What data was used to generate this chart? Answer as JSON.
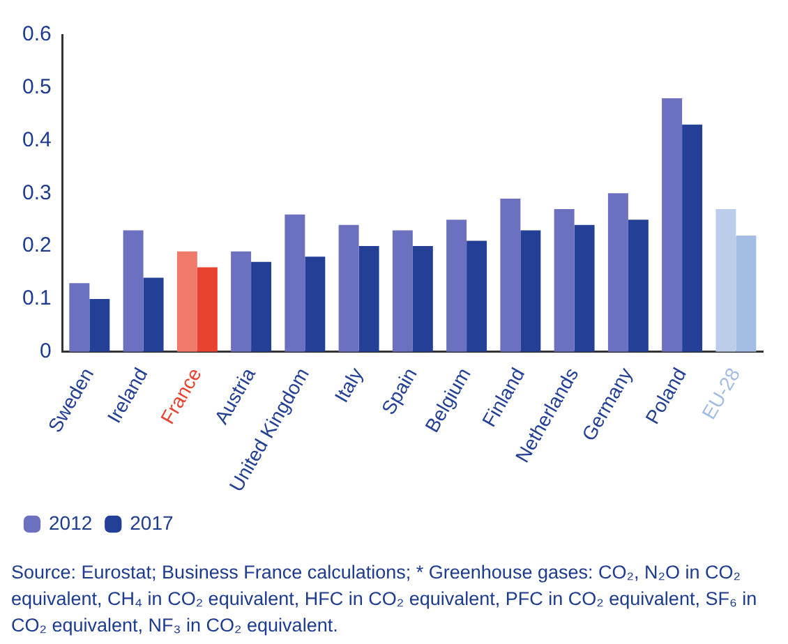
{
  "chart_data": {
    "type": "bar",
    "categories": [
      "Sweden",
      "Ireland",
      "France",
      "Austria",
      "United Kingdom",
      "Italy",
      "Spain",
      "Belgium",
      "Finland",
      "Netherlands",
      "Germany",
      "Poland",
      "EU-28"
    ],
    "series": [
      {
        "name": "2012",
        "color": "#6b70bf",
        "colors": [
          "#6b70bf",
          "#6b70bf",
          "#f07a6a",
          "#6b70bf",
          "#6b70bf",
          "#6b70bf",
          "#6b70bf",
          "#6b70bf",
          "#6b70bf",
          "#6b70bf",
          "#6b70bf",
          "#6b70bf",
          "#bccde9"
        ],
        "values": [
          0.13,
          0.23,
          0.19,
          0.19,
          0.26,
          0.24,
          0.23,
          0.25,
          0.29,
          0.27,
          0.3,
          0.48,
          0.27
        ]
      },
      {
        "name": "2017",
        "color": "#233f96",
        "colors": [
          "#233f96",
          "#233f96",
          "#e8432f",
          "#233f96",
          "#233f96",
          "#233f96",
          "#233f96",
          "#233f96",
          "#233f96",
          "#233f96",
          "#233f96",
          "#233f96",
          "#a3bce4"
        ],
        "values": [
          0.1,
          0.14,
          0.16,
          0.17,
          0.18,
          0.2,
          0.2,
          0.21,
          0.23,
          0.24,
          0.25,
          0.43,
          0.22
        ]
      }
    ],
    "ylim": [
      0,
      0.6
    ],
    "yticks": [
      0,
      0.1,
      0.2,
      0.3,
      0.4,
      0.5,
      0.6
    ],
    "grid": false,
    "legend": "bottom left",
    "annotations": [
      "Source: Eurostat; Business France calculations; * Greenhouse gases: CO₂, N₂O in CO₂ equivalent, CH₄ in CO₂ equivalent, HFC in CO₂ equivalent, PFC in CO₂ equivalent, SF₆ in CO₂ equivalent, NF₃ in CO₂ equivalent."
    ]
  }
}
